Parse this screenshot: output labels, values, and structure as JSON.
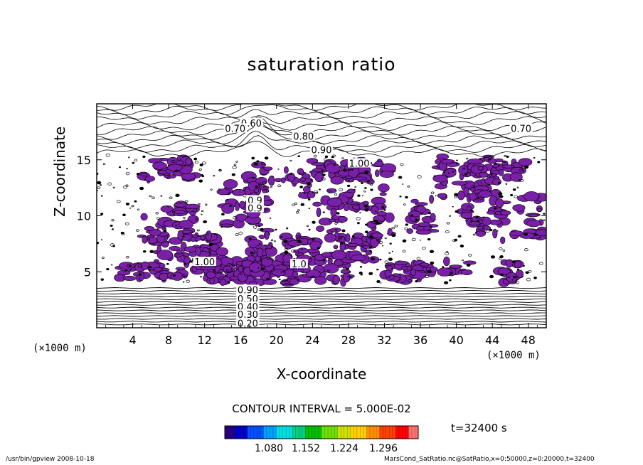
{
  "chart_data": {
    "type": "contour",
    "title": "saturation ratio",
    "xlabel": "X-coordinate",
    "ylabel": "Z-coordinate",
    "x_unit": "(×1000 m)",
    "xlim": [
      0,
      50
    ],
    "ylim": [
      0,
      20
    ],
    "x_ticks": [
      4,
      8,
      12,
      16,
      20,
      24,
      28,
      32,
      36,
      40,
      44,
      48
    ],
    "y_ticks": [
      5,
      10,
      15
    ],
    "contour_labels": [
      {
        "text": "0.60",
        "x": 17.2,
        "z": 18.3
      },
      {
        "text": "0.70",
        "x": 15.4,
        "z": 17.8
      },
      {
        "text": "0.70",
        "x": 47.2,
        "z": 17.8
      },
      {
        "text": "0.80",
        "x": 23.0,
        "z": 17.1
      },
      {
        "text": "0.90",
        "x": 25.0,
        "z": 15.9
      },
      {
        "text": "1.00",
        "x": 29.2,
        "z": 14.7
      },
      {
        "text": "1.00",
        "x": 12.0,
        "z": 5.9
      },
      {
        "text": "1.0",
        "x": 22.5,
        "z": 5.7
      },
      {
        "text": "0.9",
        "x": 17.6,
        "z": 11.4
      },
      {
        "text": "0.9",
        "x": 17.6,
        "z": 10.7
      },
      {
        "text": "0.90",
        "x": 16.8,
        "z": 3.4
      },
      {
        "text": "0.50",
        "x": 16.8,
        "z": 2.6
      },
      {
        "text": "0.40",
        "x": 16.8,
        "z": 1.9
      },
      {
        "text": "0.30",
        "x": 16.8,
        "z": 1.2
      },
      {
        "text": "0.20",
        "x": 16.8,
        "z": 0.4
      }
    ],
    "shaded_above": 1.0,
    "shade_color": "#7a1fa8",
    "colorbar": {
      "ticks": [
        "1.080",
        "1.152",
        "1.224",
        "1.296"
      ],
      "colors": [
        "#2a0080",
        "#0000c8",
        "#0050ff",
        "#00a0ff",
        "#00e0e0",
        "#00d080",
        "#00c000",
        "#70e000",
        "#d0e000",
        "#ffd000",
        "#ff9000",
        "#ff4000",
        "#ff0000",
        "#ff7070"
      ]
    },
    "contour_interval": "CONTOUR INTERVAL = 5.000E-02",
    "time_label": "t=32400 s"
  },
  "footer": {
    "left": "/usr/bin/gpview   2008-10-18",
    "right": "MarsCond_SatRatio.nc@SatRatio,x=0:50000,z=0:20000,t=32400"
  }
}
